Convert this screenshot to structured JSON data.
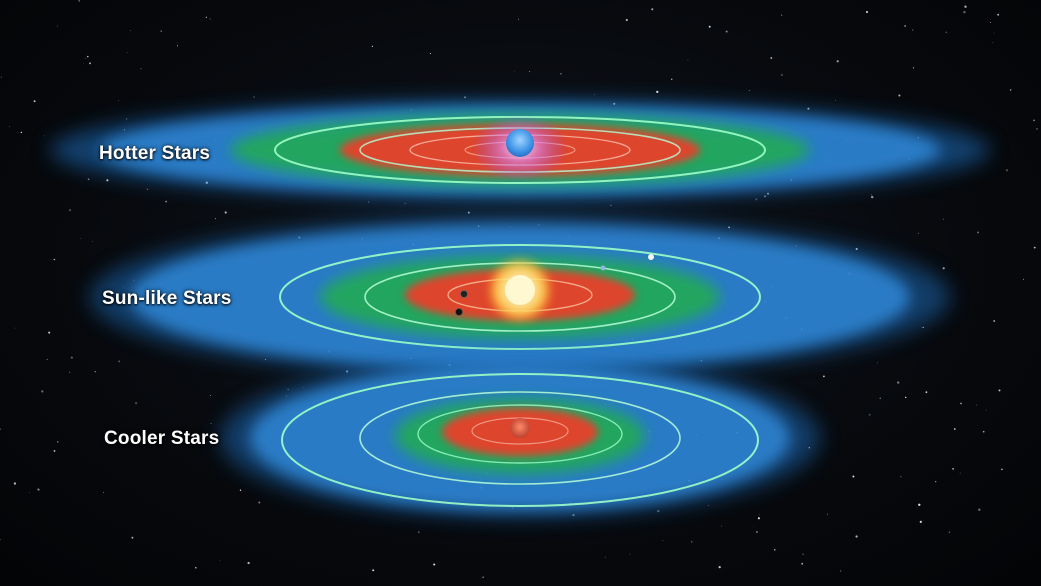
{
  "labels": {
    "hotter": "Hotter Stars",
    "sunlike": "Sun-like Stars",
    "cooler": "Cooler Stars"
  },
  "colors": {
    "space": "#05070b",
    "cold_zone": "#2f86d6",
    "habitable_zone": "#22a85a",
    "hot_zone": "#e8402a",
    "orbit": "#9dffc8",
    "hot_star": "#4fa8f0",
    "sun_star": "#fff2a0",
    "cool_star": "#c8503a"
  },
  "icons": {
    "hot_star": "blue-star-icon",
    "sun_star": "yellow-star-icon",
    "cool_star": "red-star-icon",
    "planet": "planet-icon"
  }
}
